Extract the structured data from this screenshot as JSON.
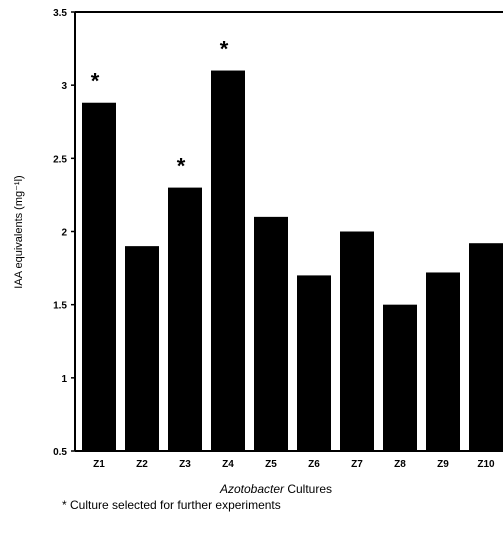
{
  "chart_data": {
    "type": "bar",
    "categories": [
      "Z1",
      "Z2",
      "Z3",
      "Z4",
      "Z5",
      "Z6",
      "Z7",
      "Z8",
      "Z9",
      "Z10"
    ],
    "values": [
      2.88,
      1.9,
      2.3,
      3.1,
      2.1,
      1.7,
      2.0,
      1.5,
      1.72,
      1.92
    ],
    "ylim": [
      0.5,
      3.5
    ],
    "yticks": [
      0.5,
      1,
      1.5,
      2,
      2.5,
      3,
      3.5
    ],
    "ytick_labels": [
      "0.5",
      "1",
      "1.5",
      "2",
      "2.5",
      "3",
      "3.5"
    ],
    "ylabel": "IAA equivalents (mg⁻¹l)",
    "xlabel_italic": "Azotobacter",
    "xlabel_rest": " Cultures",
    "marked_categories": [
      "Z1",
      "Z3",
      "Z4"
    ],
    "marker": "*",
    "bar_color": "#000000",
    "grid": false
  },
  "footnote": "* Culture selected for further  experiments"
}
